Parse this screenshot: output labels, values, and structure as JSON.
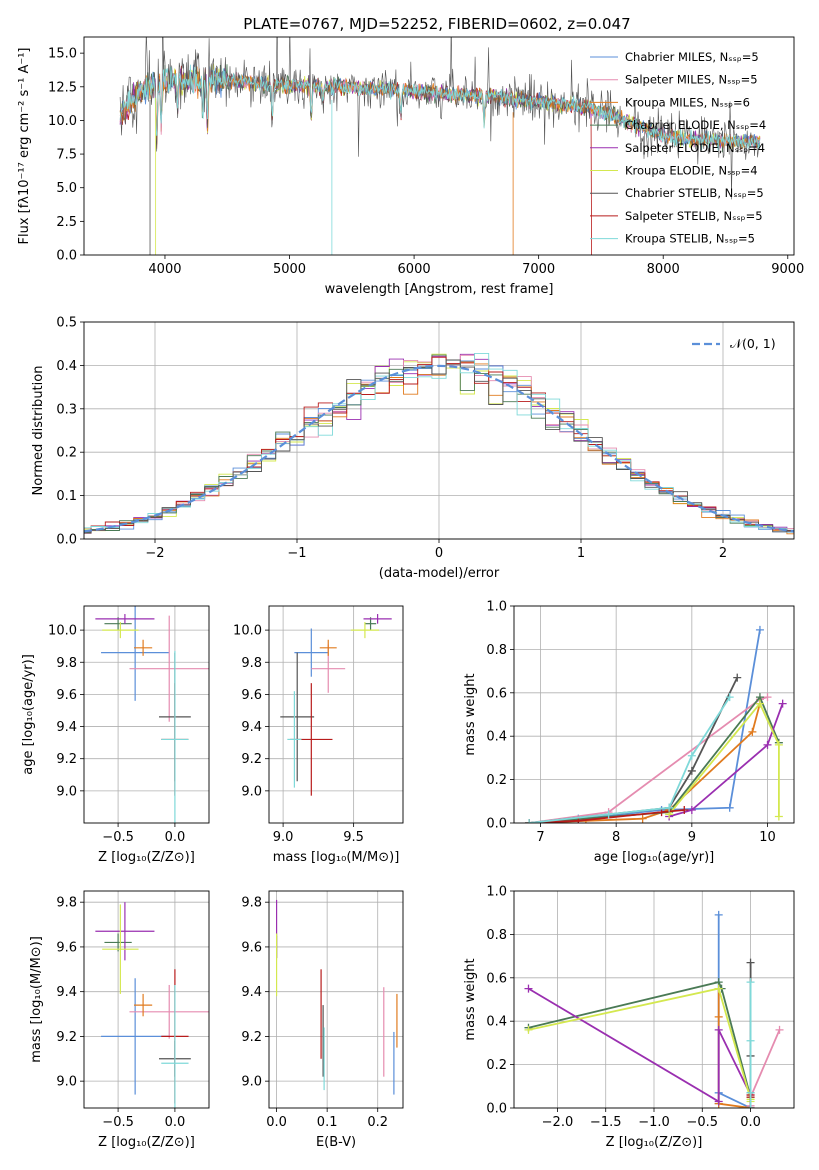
{
  "title": "PLATE=0767, MJD=52252, FIBERID=0602, z=0.047",
  "colors": {
    "chabrier_miles": "#5b8fd9",
    "salpeter_miles": "#e58cb0",
    "kroupa_miles": "#e07b1f",
    "chabrier_elodie": "#4a7a55",
    "salpeter_elodie": "#9a2fb0",
    "kroupa_elodie": "#d4e84f",
    "chabrier_stelib": "#555555",
    "salpeter_stelib": "#b81c1c",
    "kroupa_stelib": "#7fd9d9"
  },
  "chart_data": [
    {
      "id": "spectrum",
      "type": "line",
      "xlabel": "wavelength [Angstrom, rest frame]",
      "ylabel": "Flux [fλ10⁻¹⁷ erg cm⁻² s⁻¹ A⁻¹]",
      "xlim": [
        3350,
        9050
      ],
      "ylim": [
        0,
        16.2
      ],
      "xticks": [
        4000,
        5000,
        6000,
        7000,
        8000,
        9000
      ],
      "yticks": [
        0.0,
        2.5,
        5.0,
        7.5,
        10.0,
        12.5,
        15.0
      ],
      "legend_position": "top-right",
      "legend": [
        "Chabrier MILES, Nₛₛₚ=5",
        "Salpeter MILES, Nₛₛₚ=5",
        "Kroupa MILES, Nₛₛₚ=6",
        "Chabrier ELODIE, Nₛₛₚ=4",
        "Salpeter ELODIE, Nₛₛₚ=4",
        "Kroupa ELODIE, Nₛₛₚ=4",
        "Chabrier STELIB, Nₛₛₚ=5",
        "Salpeter STELIB, Nₛₛₚ=5",
        "Kroupa STELIB, Nₛₛₚ=5"
      ],
      "continuum": {
        "x": [
          3640,
          3700,
          3800,
          3900,
          4000,
          4100,
          4200,
          4400,
          4600,
          4800,
          5000,
          5200,
          5400,
          5600,
          5800,
          6000,
          6200,
          6400,
          6600,
          6800,
          7000,
          7200,
          7400,
          7600,
          7800,
          8000,
          8200,
          8400,
          8600,
          8800
        ],
        "y": [
          10.3,
          11.0,
          12.2,
          12.6,
          12.9,
          13.0,
          12.9,
          13.0,
          12.9,
          12.7,
          12.6,
          12.6,
          12.5,
          12.4,
          12.3,
          12.2,
          12.0,
          11.9,
          11.8,
          11.6,
          11.4,
          11.2,
          10.9,
          10.4,
          9.6,
          8.9,
          8.6,
          8.5,
          8.4,
          8.4
        ]
      }
    },
    {
      "id": "residual_hist",
      "type": "line",
      "xlabel": "(data-model)/error",
      "ylabel": "Normed distribution",
      "xlim": [
        -2.5,
        2.5
      ],
      "ylim": [
        0,
        0.5
      ],
      "xticks": [
        -2,
        -1,
        0,
        1,
        2
      ],
      "yticks": [
        0.0,
        0.1,
        0.2,
        0.3,
        0.4,
        0.5
      ],
      "grid": true,
      "legend_position": "top-right",
      "legend": [
        "𝒩(0, 1)"
      ],
      "bin_width": 0.1
    },
    {
      "id": "age_vs_z",
      "type": "scatter",
      "xlabel": "Z [log₁₀(Z/Z⊙)]",
      "ylabel": "age  [log₁₀(age/yr)]",
      "xlim": [
        -0.8,
        0.3
      ],
      "ylim": [
        8.8,
        10.15
      ],
      "xticks": [
        -0.5,
        0.0
      ],
      "yticks": [
        9.0,
        9.2,
        9.4,
        9.6,
        9.8,
        10.0
      ],
      "grid": true,
      "points": [
        {
          "series": "chabrier_miles",
          "x": -0.35,
          "xerr": 0.3,
          "y": 9.86,
          "yerr": 0.3
        },
        {
          "series": "salpeter_miles",
          "x": -0.05,
          "xerr": 0.35,
          "y": 9.76,
          "yerr": 0.33
        },
        {
          "series": "kroupa_miles",
          "x": -0.28,
          "xerr": 0.08,
          "y": 9.89,
          "yerr": 0.05
        },
        {
          "series": "chabrier_elodie",
          "x": -0.5,
          "xerr": 0.12,
          "y": 10.04,
          "yerr": 0.04
        },
        {
          "series": "salpeter_elodie",
          "x": -0.44,
          "xerr": 0.26,
          "y": 10.07,
          "yerr": 0.03
        },
        {
          "series": "kroupa_elodie",
          "x": -0.48,
          "xerr": 0.16,
          "y": 10.0,
          "yerr": 0.05
        },
        {
          "series": "chabrier_stelib",
          "x": 0.0,
          "xerr": 0.14,
          "y": 9.46,
          "yerr": 0.4
        },
        {
          "series": "salpeter_stelib",
          "x": 0.0,
          "xerr": 0.12,
          "y": 9.32,
          "yerr": 0.35
        },
        {
          "series": "kroupa_stelib",
          "x": 0.0,
          "xerr": 0.12,
          "y": 9.32,
          "yerr": 0.55
        }
      ]
    },
    {
      "id": "age_vs_mass",
      "type": "scatter",
      "xlabel": "mass [log₁₀(M/M⊙)]",
      "ylabel": "",
      "xlim": [
        8.9,
        9.85
      ],
      "ylim": [
        8.8,
        10.15
      ],
      "xticks": [
        9.0,
        9.5
      ],
      "yticks": [
        9.0,
        9.2,
        9.4,
        9.6,
        9.8,
        10.0
      ],
      "grid": true,
      "points": [
        {
          "series": "chabrier_miles",
          "x": 9.2,
          "xerr": 0.12,
          "y": 9.86,
          "yerr": 0.15
        },
        {
          "series": "salpeter_miles",
          "x": 9.32,
          "xerr": 0.12,
          "y": 9.76,
          "yerr": 0.15
        },
        {
          "series": "kroupa_miles",
          "x": 9.32,
          "xerr": 0.06,
          "y": 9.89,
          "yerr": 0.05
        },
        {
          "series": "chabrier_elodie",
          "x": 9.62,
          "xerr": 0.04,
          "y": 10.04,
          "yerr": 0.04
        },
        {
          "series": "salpeter_elodie",
          "x": 9.67,
          "xerr": 0.1,
          "y": 10.07,
          "yerr": 0.03
        },
        {
          "series": "kroupa_elodie",
          "x": 9.58,
          "xerr": 0.1,
          "y": 10.0,
          "yerr": 0.05
        },
        {
          "series": "chabrier_stelib",
          "x": 9.1,
          "xerr": 0.12,
          "y": 9.46,
          "yerr": 0.4
        },
        {
          "series": "salpeter_stelib",
          "x": 9.2,
          "xerr": 0.15,
          "y": 9.32,
          "yerr": 0.35
        },
        {
          "series": "kroupa_stelib",
          "x": 9.08,
          "xerr": 0.05,
          "y": 9.32,
          "yerr": 0.3
        }
      ]
    },
    {
      "id": "mass_weight_vs_age",
      "type": "line",
      "xlabel": "age  [log₁₀(age/yr)]",
      "ylabel": "mass weight",
      "xlim": [
        6.65,
        10.35
      ],
      "ylim": [
        0,
        1
      ],
      "xticks": [
        7,
        8,
        9,
        10
      ],
      "yticks": [
        0.0,
        0.2,
        0.4,
        0.6,
        0.8,
        1.0
      ],
      "grid": true,
      "series": [
        {
          "key": "chabrier_miles",
          "x": [
            6.85,
            7.5,
            8.6,
            9.5,
            9.9
          ],
          "y": [
            0.0,
            0.02,
            0.06,
            0.07,
            0.89
          ]
        },
        {
          "key": "salpeter_miles",
          "x": [
            6.85,
            7.9,
            9.9,
            10.0
          ],
          "y": [
            0.0,
            0.05,
            0.57,
            0.58
          ]
        },
        {
          "key": "kroupa_miles",
          "x": [
            6.85,
            7.6,
            8.35,
            8.7,
            9.8,
            9.9
          ],
          "y": [
            0.0,
            0.01,
            0.02,
            0.06,
            0.42,
            0.55
          ]
        },
        {
          "key": "chabrier_elodie",
          "x": [
            6.85,
            8.7,
            9.9,
            10.15
          ],
          "y": [
            0.0,
            0.05,
            0.58,
            0.37
          ]
        },
        {
          "key": "salpeter_elodie",
          "x": [
            8.7,
            9.0,
            10.0,
            10.2
          ],
          "y": [
            0.03,
            0.06,
            0.36,
            0.55
          ]
        },
        {
          "key": "kroupa_elodie",
          "x": [
            8.7,
            9.9,
            10.15,
            10.15
          ],
          "y": [
            0.04,
            0.55,
            0.36,
            0.03
          ]
        },
        {
          "key": "chabrier_stelib",
          "x": [
            6.85,
            8.7,
            9.0,
            9.6
          ],
          "y": [
            0.0,
            0.07,
            0.24,
            0.67
          ]
        },
        {
          "key": "salpeter_stelib",
          "x": [
            6.85,
            7.5,
            8.6,
            8.9
          ],
          "y": [
            0.0,
            0.01,
            0.05,
            0.06
          ]
        },
        {
          "key": "kroupa_stelib",
          "x": [
            6.85,
            7.9,
            8.7,
            9.0,
            9.5
          ],
          "y": [
            0.0,
            0.04,
            0.07,
            0.31,
            0.58
          ]
        }
      ]
    },
    {
      "id": "mass_vs_z",
      "type": "scatter",
      "xlabel": "Z [log₁₀(Z/Z⊙)]",
      "ylabel": "mass [log₁₀(M/M⊙)]",
      "xlim": [
        -0.8,
        0.3
      ],
      "ylim": [
        8.88,
        9.85
      ],
      "xticks": [
        -0.5,
        0.0
      ],
      "yticks": [
        9.0,
        9.2,
        9.4,
        9.6,
        9.8
      ],
      "grid": true,
      "points": [
        {
          "series": "chabrier_miles",
          "x": -0.35,
          "xerr": 0.3,
          "y": 9.2,
          "yerr": 0.26
        },
        {
          "series": "salpeter_miles",
          "x": -0.05,
          "xerr": 0.35,
          "y": 9.31,
          "yerr": 0.12
        },
        {
          "series": "kroupa_miles",
          "x": -0.28,
          "xerr": 0.08,
          "y": 9.34,
          "yerr": 0.05
        },
        {
          "series": "chabrier_elodie",
          "x": -0.5,
          "xerr": 0.12,
          "y": 9.62,
          "yerr": 0.04
        },
        {
          "series": "salpeter_elodie",
          "x": -0.44,
          "xerr": 0.26,
          "y": 9.67,
          "yerr": 0.13
        },
        {
          "series": "kroupa_elodie",
          "x": -0.48,
          "xerr": 0.16,
          "y": 9.59,
          "yerr": 0.2
        },
        {
          "series": "chabrier_stelib",
          "x": 0.0,
          "xerr": 0.14,
          "y": 9.1,
          "yerr": 0.08
        },
        {
          "series": "salpeter_stelib",
          "x": 0.0,
          "xerr": 0.12,
          "y": 9.2,
          "yerr": 0.3
        },
        {
          "series": "kroupa_stelib",
          "x": 0.0,
          "xerr": 0.12,
          "y": 9.08,
          "yerr": 0.35
        }
      ]
    },
    {
      "id": "mass_vs_ebv",
      "type": "scatter",
      "xlabel": "E(B-V)",
      "ylabel": "",
      "xlim": [
        -0.015,
        0.25
      ],
      "ylim": [
        8.88,
        9.85
      ],
      "xticks": [
        0.0,
        0.1,
        0.2
      ],
      "yticks": [
        9.0,
        9.2,
        9.4,
        9.6,
        9.8
      ],
      "grid": true,
      "points": [
        {
          "series": "chabrier_miles",
          "x": 0.232,
          "y": 9.08,
          "yerr": 0.14
        },
        {
          "series": "salpeter_miles",
          "x": 0.212,
          "y": 9.22,
          "yerr": 0.2
        },
        {
          "series": "kroupa_miles",
          "x": 0.238,
          "y": 9.27,
          "yerr": 0.12
        },
        {
          "series": "chabrier_elodie",
          "x": 0.0,
          "y": 9.6,
          "yerr": 0.05
        },
        {
          "series": "salpeter_elodie",
          "x": 0.0,
          "y": 9.68,
          "yerr": 0.13
        },
        {
          "series": "kroupa_elodie",
          "x": 0.0,
          "y": 9.52,
          "yerr": 0.14
        },
        {
          "series": "chabrier_stelib",
          "x": 0.092,
          "y": 9.18,
          "yerr": 0.16
        },
        {
          "series": "salpeter_stelib",
          "x": 0.088,
          "y": 9.3,
          "yerr": 0.2
        },
        {
          "series": "kroupa_stelib",
          "x": 0.094,
          "y": 9.1,
          "yerr": 0.14
        }
      ]
    },
    {
      "id": "mass_weight_vs_z",
      "type": "line",
      "xlabel": "Z [log₁₀(Z/Z⊙)]",
      "ylabel": "mass weight",
      "xlim": [
        -2.45,
        0.45
      ],
      "ylim": [
        0,
        1
      ],
      "xticks": [
        -2.0,
        -1.5,
        -1.0,
        -0.5,
        0.0
      ],
      "yticks": [
        0.0,
        0.2,
        0.4,
        0.6,
        0.8,
        1.0
      ],
      "grid": true,
      "series": [
        {
          "key": "chabrier_miles",
          "x": [
            -0.33,
            -0.33,
            -0.33,
            0.0
          ],
          "y": [
            0.89,
            0.02,
            0.07,
            0.0
          ]
        },
        {
          "key": "salpeter_miles",
          "x": [
            0.0,
            0.0,
            0.3
          ],
          "y": [
            0.01,
            0.05,
            0.36
          ]
        },
        {
          "key": "kroupa_miles",
          "x": [
            -0.33,
            -0.33,
            -0.33,
            0.0
          ],
          "y": [
            0.55,
            0.42,
            0.02,
            0.0
          ]
        },
        {
          "key": "chabrier_elodie",
          "x": [
            -2.3,
            -0.33,
            -0.3,
            0.0
          ],
          "y": [
            0.37,
            0.58,
            0.55,
            0.05
          ]
        },
        {
          "key": "salpeter_elodie",
          "x": [
            -2.3,
            -0.33,
            -0.33,
            0.0
          ],
          "y": [
            0.55,
            0.03,
            0.36,
            0.06
          ]
        },
        {
          "key": "kroupa_elodie",
          "x": [
            -2.3,
            -0.33,
            0.0,
            0.0
          ],
          "y": [
            0.36,
            0.55,
            0.04,
            0.03
          ]
        },
        {
          "key": "chabrier_stelib",
          "x": [
            0.0,
            0.0,
            0.0,
            0.0
          ],
          "y": [
            0.67,
            0.24,
            0.07,
            0.0
          ]
        },
        {
          "key": "salpeter_stelib",
          "x": [
            0.0,
            0.0,
            0.0
          ],
          "y": [
            0.06,
            0.05,
            0.0
          ]
        },
        {
          "key": "kroupa_stelib",
          "x": [
            0.0,
            0.0,
            0.0,
            0.0
          ],
          "y": [
            0.58,
            0.31,
            0.07,
            0.0
          ]
        }
      ]
    }
  ]
}
